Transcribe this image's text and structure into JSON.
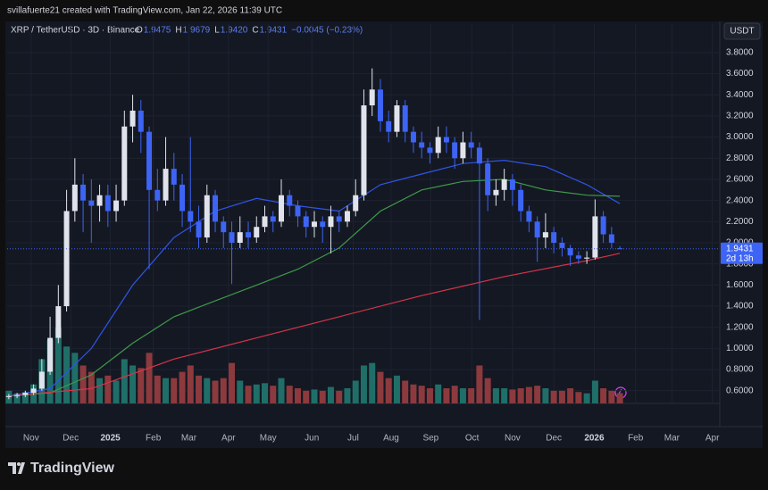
{
  "header": {
    "credit": "svillafuerte21 created with TradingView.com, Jan 22, 2026 11:39 UTC"
  },
  "footer": {
    "brand": "TradingView"
  },
  "chart_data": {
    "type": "candlestick",
    "symbol": "XRP / TetherUSD · 3D · Binance",
    "currency": "USDT",
    "legend": {
      "o_label": "O",
      "o": "1.9475",
      "h_label": "H",
      "h": "1.9679",
      "l_label": "L",
      "l": "1.9420",
      "c_label": "C",
      "c": "1.9431",
      "change": "−0.0045 (−0.23%)"
    },
    "countdown": "2d 13h",
    "up_color": "#e0e3eb",
    "down_color": "#3d64f5",
    "volume_up_color": "#1f6f68",
    "volume_down_color": "#8c3a3d",
    "open": [
      0.54,
      0.55,
      0.56,
      0.58,
      0.62,
      0.78,
      1.1,
      1.4,
      2.3,
      2.55,
      2.4,
      2.35,
      2.45,
      2.3,
      2.4,
      3.1,
      3.25,
      3.05,
      2.5,
      2.4,
      2.7,
      2.55,
      2.3,
      2.2,
      2.05,
      2.45,
      2.2,
      2.1,
      2.0,
      2.1,
      2.05,
      2.15,
      2.25,
      2.2,
      2.45,
      2.35,
      2.25,
      2.15,
      2.2,
      2.15,
      2.25,
      2.2,
      2.3,
      2.45,
      3.3,
      3.45,
      3.15,
      3.05,
      3.3,
      3.05,
      2.95,
      2.9,
      2.85,
      3.0,
      2.95,
      2.8,
      2.95,
      2.9,
      2.75,
      2.45,
      2.5,
      2.6,
      2.5,
      2.3,
      2.2,
      2.05,
      2.1,
      2.0,
      1.95,
      1.88,
      1.85,
      1.86,
      2.25,
      2.08,
      1.9475
    ],
    "high": [
      0.57,
      0.58,
      0.6,
      0.66,
      0.9,
      1.3,
      1.6,
      2.5,
      2.8,
      2.65,
      2.6,
      2.55,
      2.55,
      2.55,
      3.25,
      3.4,
      3.35,
      3.1,
      2.7,
      3.0,
      2.85,
      2.65,
      3.0,
      2.35,
      2.55,
      2.5,
      2.25,
      2.2,
      2.25,
      2.2,
      2.25,
      2.35,
      2.3,
      2.6,
      2.5,
      2.4,
      2.3,
      2.3,
      2.25,
      2.35,
      2.3,
      2.35,
      2.6,
      3.45,
      3.65,
      3.55,
      3.25,
      3.35,
      3.35,
      3.1,
      3.05,
      2.95,
      3.1,
      3.1,
      3.0,
      3.05,
      3.05,
      2.95,
      2.8,
      2.6,
      2.7,
      2.65,
      2.55,
      2.35,
      2.25,
      2.28,
      2.15,
      2.05,
      1.98,
      1.92,
      1.92,
      2.41,
      2.3,
      2.15,
      1.9679
    ],
    "low": [
      0.52,
      0.53,
      0.54,
      0.56,
      0.6,
      0.75,
      1.05,
      1.35,
      2.2,
      2.1,
      2.0,
      2.2,
      2.15,
      2.2,
      2.35,
      2.95,
      2.85,
      1.75,
      2.3,
      2.35,
      2.4,
      2.15,
      2.1,
      1.95,
      2.0,
      2.1,
      1.95,
      1.61,
      1.95,
      1.95,
      2.0,
      2.1,
      2.1,
      2.15,
      2.25,
      2.15,
      2.05,
      2.05,
      2.0,
      1.9,
      2.1,
      2.15,
      2.25,
      2.4,
      3.2,
      3.05,
      2.95,
      3.0,
      2.95,
      2.85,
      2.8,
      2.75,
      2.8,
      2.85,
      2.7,
      2.75,
      2.8,
      1.27,
      2.3,
      2.35,
      2.4,
      2.35,
      2.2,
      2.1,
      1.82,
      1.95,
      1.9,
      1.87,
      1.78,
      1.8,
      1.8,
      1.84,
      2.0,
      1.95,
      1.942
    ],
    "close": [
      0.55,
      0.56,
      0.58,
      0.62,
      0.78,
      1.1,
      1.4,
      2.3,
      2.55,
      2.4,
      2.35,
      2.45,
      2.3,
      2.4,
      3.1,
      3.25,
      3.05,
      2.5,
      2.4,
      2.7,
      2.55,
      2.3,
      2.2,
      2.05,
      2.45,
      2.2,
      2.1,
      2.0,
      2.1,
      2.05,
      2.15,
      2.25,
      2.2,
      2.45,
      2.35,
      2.25,
      2.15,
      2.2,
      2.15,
      2.25,
      2.2,
      2.3,
      2.45,
      3.3,
      3.45,
      3.15,
      3.05,
      3.3,
      3.05,
      2.95,
      2.9,
      2.85,
      3.0,
      2.95,
      2.8,
      2.95,
      2.9,
      2.75,
      2.45,
      2.5,
      2.6,
      2.5,
      2.3,
      2.2,
      2.05,
      2.1,
      2.0,
      1.95,
      1.88,
      1.85,
      1.86,
      2.25,
      2.08,
      2.0,
      1.9431
    ],
    "volume": [
      10,
      8,
      9,
      15,
      35,
      50,
      60,
      45,
      40,
      30,
      25,
      20,
      22,
      18,
      35,
      30,
      28,
      40,
      22,
      20,
      20,
      25,
      30,
      22,
      20,
      18,
      20,
      32,
      18,
      14,
      15,
      16,
      14,
      20,
      14,
      12,
      10,
      11,
      10,
      13,
      10,
      12,
      18,
      30,
      32,
      25,
      20,
      22,
      18,
      15,
      14,
      12,
      15,
      12,
      14,
      12,
      12,
      30,
      20,
      12,
      12,
      11,
      12,
      13,
      14,
      12,
      10,
      10,
      12,
      9,
      8,
      18,
      12,
      10,
      8
    ],
    "moving_averages": [
      {
        "color": "#2f55e6",
        "x": [
          0,
          5,
          10,
          15,
          20,
          25,
          30,
          35,
          40,
          45,
          50,
          55,
          60,
          65,
          70,
          74
        ],
        "values": [
          0.55,
          0.62,
          1.0,
          1.6,
          2.05,
          2.3,
          2.42,
          2.35,
          2.3,
          2.55,
          2.65,
          2.75,
          2.78,
          2.72,
          2.55,
          2.37
        ]
      },
      {
        "color": "#3f9a4a",
        "x": [
          0,
          5,
          10,
          15,
          20,
          25,
          30,
          35,
          40,
          45,
          50,
          55,
          60,
          65,
          70,
          74
        ],
        "values": [
          0.55,
          0.58,
          0.75,
          1.05,
          1.3,
          1.45,
          1.6,
          1.75,
          1.95,
          2.3,
          2.5,
          2.58,
          2.6,
          2.5,
          2.45,
          2.44
        ]
      },
      {
        "color": "#d6344a",
        "x": [
          0,
          10,
          20,
          30,
          40,
          50,
          60,
          70,
          74
        ],
        "values": [
          0.55,
          0.62,
          0.9,
          1.1,
          1.3,
          1.5,
          1.68,
          1.83,
          1.9
        ]
      }
    ],
    "xlim": [
      -0.2,
      86.1
    ],
    "xticks": [
      {
        "value": 2.7,
        "label": "Nov"
      },
      {
        "value": 7.5,
        "label": "Dec"
      },
      {
        "value": 12.3,
        "label": "2025"
      },
      {
        "value": 17.5,
        "label": "Feb"
      },
      {
        "value": 21.8,
        "label": "Mar"
      },
      {
        "value": 26.6,
        "label": "Apr"
      },
      {
        "value": 31.4,
        "label": "May"
      },
      {
        "value": 36.7,
        "label": "Jun"
      },
      {
        "value": 41.7,
        "label": "Jul"
      },
      {
        "value": 46.3,
        "label": "Aug"
      },
      {
        "value": 51.1,
        "label": "Sep"
      },
      {
        "value": 56.1,
        "label": "Oct"
      },
      {
        "value": 61.0,
        "label": "Nov"
      },
      {
        "value": 66.0,
        "label": "Dec"
      },
      {
        "value": 70.9,
        "label": "2026"
      },
      {
        "value": 75.9,
        "label": "Feb"
      },
      {
        "value": 80.3,
        "label": "Mar"
      },
      {
        "value": 85.2,
        "label": "Apr"
      }
    ],
    "ylim": [
      0.48,
      3.9
    ],
    "yticks": [
      {
        "value": 0.6,
        "label": "0.6000"
      },
      {
        "value": 0.8,
        "label": "0.8000"
      },
      {
        "value": 1.0,
        "label": "1.0000"
      },
      {
        "value": 1.2,
        "label": "1.2000"
      },
      {
        "value": 1.4,
        "label": "1.4000"
      },
      {
        "value": 1.6,
        "label": "1.6000"
      },
      {
        "value": 1.8,
        "label": "1.8000"
      },
      {
        "value": 2.0,
        "label": "2.0000"
      },
      {
        "value": 2.2,
        "label": "2.2000"
      },
      {
        "value": 2.4,
        "label": "2.4000"
      },
      {
        "value": 2.6,
        "label": "2.6000"
      },
      {
        "value": 2.8,
        "label": "2.8000"
      },
      {
        "value": 3.0,
        "label": "3.0000"
      },
      {
        "value": 3.2,
        "label": "3.2000"
      },
      {
        "value": 3.4,
        "label": "3.4000"
      },
      {
        "value": 3.6,
        "label": "3.6000"
      },
      {
        "value": 3.8,
        "label": "3.8000"
      }
    ],
    "grid": true
  }
}
